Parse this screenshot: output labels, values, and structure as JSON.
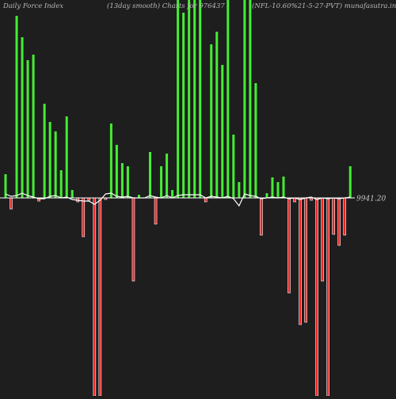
{
  "header": {
    "left": "Daily Force  Index",
    "middle": "(13day smooth) Charts for 976437",
    "right": "(NFL-10.60%21-5-27-PVT) munafasutra.in"
  },
  "colors": {
    "background": "#1e1e1e",
    "positive": "#44ee33",
    "negative": "#ee2222",
    "baseline": "#ffffff",
    "smooth_line": "#ffffff"
  },
  "chart_data": {
    "type": "bar",
    "title": "Daily Force  Index",
    "subtitle": "(13day smooth) Charts for 976437",
    "symbol": "(NFL-10.60%21-5-27-PVT)",
    "source": "munafasutra.in",
    "last_value_label": "9941.20",
    "ylim": [
      -250,
      250
    ],
    "values": [
      30,
      -14,
      230,
      203,
      174,
      181,
      -4,
      119,
      96,
      84,
      35,
      103,
      10,
      -5,
      -49,
      -3,
      -250,
      -250,
      -2,
      94,
      67,
      44,
      40,
      -105,
      4,
      0,
      58,
      -33,
      40,
      56,
      10,
      250,
      234,
      250,
      250,
      250,
      -5,
      194,
      210,
      168,
      250,
      80,
      20,
      250,
      250,
      145,
      -47,
      6,
      26,
      20,
      27,
      -120,
      -5,
      -160,
      -157,
      -3,
      -250,
      -105,
      -250,
      -46,
      -60,
      -47,
      40
    ],
    "smooth": [
      5,
      2,
      3,
      6,
      3,
      1,
      -1,
      -1,
      2,
      3,
      0,
      1,
      -2,
      -3,
      -4,
      -4,
      -8,
      -3,
      5,
      6,
      2,
      1,
      2,
      0,
      0,
      0,
      3,
      1,
      0,
      3,
      0,
      3,
      4,
      4,
      4,
      4,
      0,
      2,
      1,
      0,
      2,
      -1,
      -10,
      5,
      3,
      2,
      -1,
      0,
      1,
      0,
      1,
      -1,
      0,
      -2,
      0,
      1,
      -2,
      0,
      -1,
      0,
      -1,
      0,
      1
    ]
  }
}
